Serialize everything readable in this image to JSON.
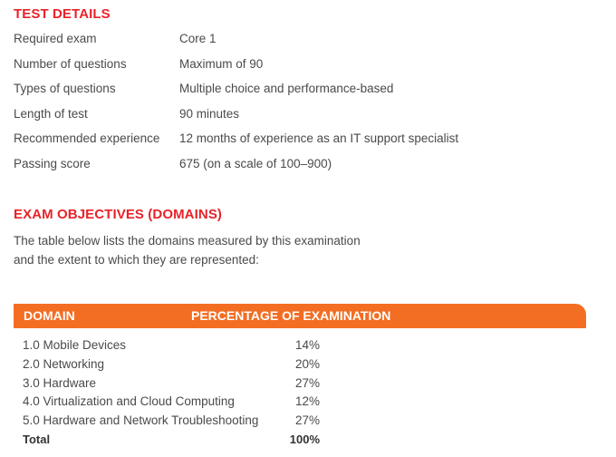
{
  "test_details": {
    "heading": "TEST DETAILS",
    "rows": [
      {
        "label": "Required exam",
        "value": "Core 1"
      },
      {
        "label": "Number of questions",
        "value": "Maximum of 90"
      },
      {
        "label": "Types of questions",
        "value": "Multiple choice and performance-based"
      },
      {
        "label": "Length of test",
        "value": "90 minutes"
      },
      {
        "label": "Recommended experience",
        "value": "12 months of experience as an IT support specialist"
      },
      {
        "label": "Passing score",
        "value": "675 (on a scale of 100–900)"
      }
    ]
  },
  "objectives": {
    "heading": "EXAM OBJECTIVES (DOMAINS)",
    "intro_line1": "The table below lists the domains measured by this examination",
    "intro_line2": "and the extent to which they are represented:"
  },
  "table": {
    "header_domain": "DOMAIN",
    "header_percentage": "PERCENTAGE OF EXAMINATION",
    "header_color": "#f36e23",
    "rows": [
      {
        "domain": "1.0 Mobile Devices",
        "percentage": "14%"
      },
      {
        "domain": "2.0 Networking",
        "percentage": "20%"
      },
      {
        "domain": "3.0 Hardware",
        "percentage": "27%"
      },
      {
        "domain": "4.0 Virtualization and Cloud Computing",
        "percentage": "12%"
      },
      {
        "domain": "5.0 Hardware and Network Troubleshooting",
        "percentage": "27%"
      }
    ],
    "total": {
      "domain": "Total",
      "percentage": "100%"
    }
  },
  "colors": {
    "heading": "#e8232a",
    "body_text": "#4a4a4a"
  }
}
